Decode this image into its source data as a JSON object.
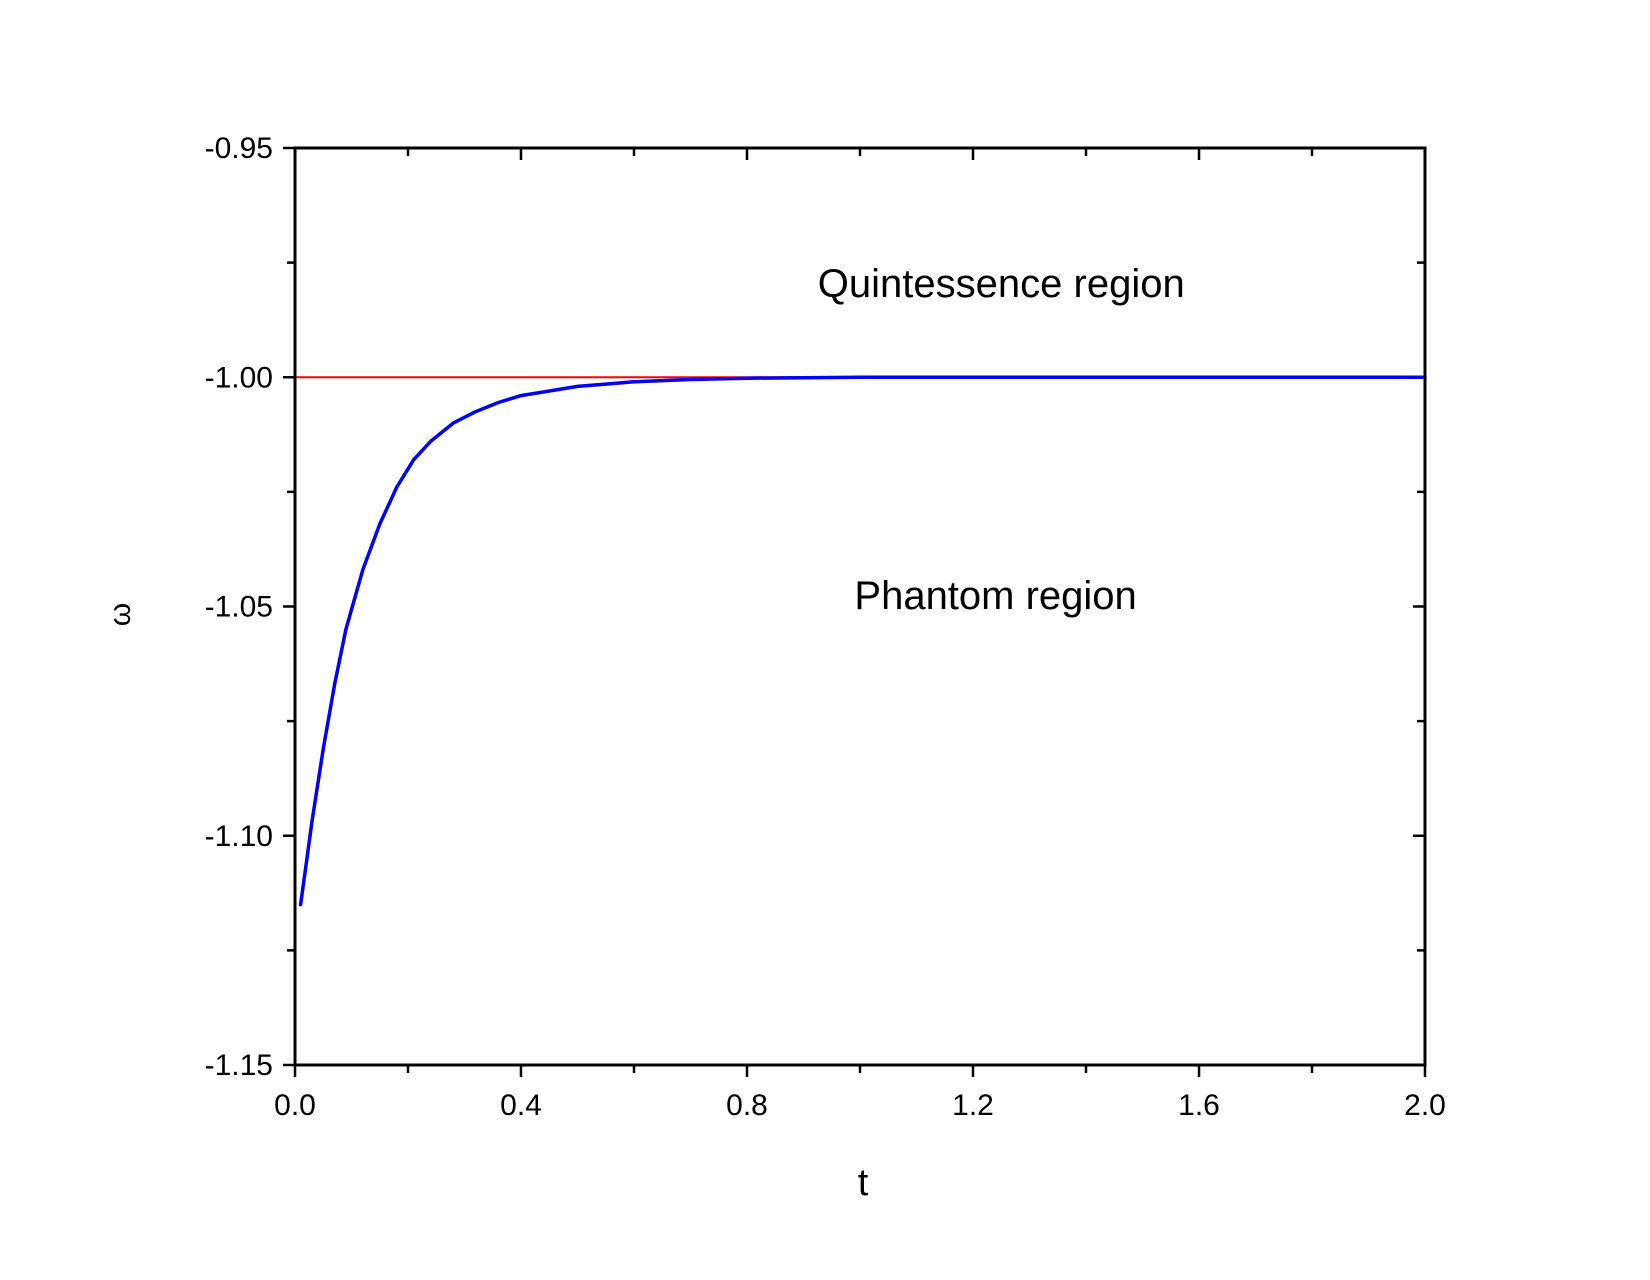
{
  "chart_data": {
    "type": "line",
    "title": "",
    "xlabel": "t",
    "ylabel": "ω",
    "xlim": [
      0.0,
      2.0
    ],
    "ylim": [
      -1.15,
      -0.95
    ],
    "x_ticks": [
      0.0,
      0.4,
      0.8,
      1.2,
      1.6,
      2.0
    ],
    "x_tick_labels": [
      "0.0",
      "0.4",
      "0.8",
      "1.2",
      "1.6",
      "2.0"
    ],
    "y_ticks": [
      -0.95,
      -1.0,
      -1.05,
      -1.1,
      -1.15
    ],
    "y_tick_labels": [
      "-0.95",
      "-1.00",
      "-1.05",
      "-1.10",
      "-1.15"
    ],
    "grid": false,
    "legend": "none",
    "series": [
      {
        "color": "#0000ff",
        "x": [
          0.01,
          0.02,
          0.03,
          0.05,
          0.07,
          0.09,
          0.12,
          0.15,
          0.18,
          0.21,
          0.24,
          0.28,
          0.32,
          0.36,
          0.4,
          0.45,
          0.5,
          0.55,
          0.6,
          0.7,
          0.8,
          0.9,
          1.0,
          1.2,
          1.5,
          2.0
        ],
        "values": [
          -1.115,
          -1.106,
          -1.097,
          -1.081,
          -1.067,
          -1.055,
          -1.042,
          -1.032,
          -1.024,
          -1.018,
          -1.014,
          -1.01,
          -1.0075,
          -1.0055,
          -1.004,
          -1.003,
          -1.002,
          -1.0015,
          -1.001,
          -1.0005,
          -1.0002,
          -1.0001,
          -1.0,
          -1.0,
          -1.0,
          -1.0
        ]
      },
      {
        "color": "#ff0000",
        "x": [
          0.0,
          2.0
        ],
        "values": [
          -1.0,
          -1.0
        ]
      }
    ],
    "annotations": [
      {
        "text": "Quintessence region",
        "x": 1.25,
        "y": -0.9825
      },
      {
        "text": "Phantom region",
        "x": 1.24,
        "y": -1.0505
      }
    ]
  }
}
